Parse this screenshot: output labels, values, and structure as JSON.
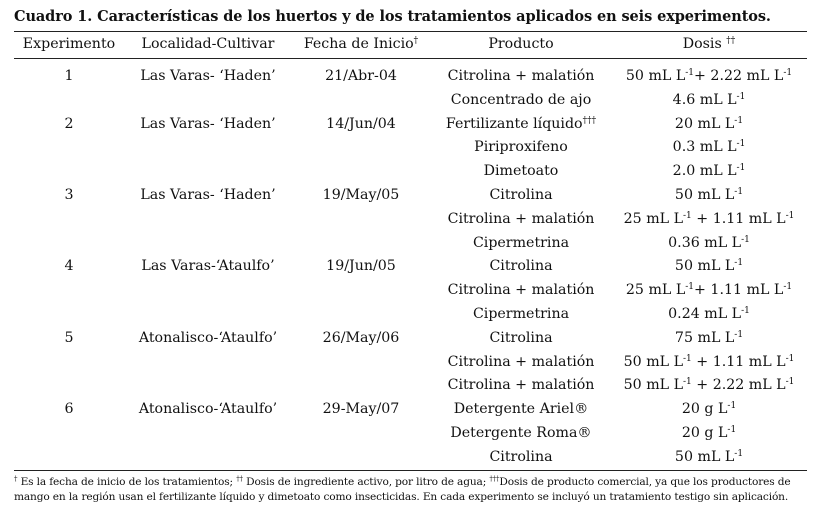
{
  "caption": {
    "label": "Cuadro 1.",
    "text": "Características de los huertos y de los tratamientos aplicados en seis experimentos."
  },
  "headers": {
    "experimento": "Experimento",
    "localidad": "Localidad-Cultivar",
    "fecha": "Fecha de Inicio",
    "fecha_mark": "†",
    "producto": "Producto",
    "dosis": "Dosis",
    "dosis_mark": "††"
  },
  "rows": [
    {
      "exp": "1",
      "loc": "Las Varas- ‘Haden’",
      "fecha": "21/Abr-04",
      "producto": "Citrolina + malatión",
      "producto_mark": "",
      "dosis": [
        [
          "50 mL L",
          "-1"
        ],
        [
          "+ 2.22 mL L",
          "-1"
        ]
      ]
    },
    {
      "exp": "",
      "loc": "",
      "fecha": "",
      "producto": "Concentrado de ajo",
      "producto_mark": "",
      "dosis": [
        [
          "4.6 mL L",
          "-1"
        ],
        [
          "",
          ""
        ]
      ]
    },
    {
      "exp": "2",
      "loc": "Las Varas- ‘Haden’",
      "fecha": "14/Jun/04",
      "producto": "Fertilizante líquido",
      "producto_mark": "†††",
      "dosis": [
        [
          "20 mL L",
          "-1"
        ],
        [
          "",
          ""
        ]
      ]
    },
    {
      "exp": "",
      "loc": "",
      "fecha": "",
      "producto": "Piriproxifeno",
      "producto_mark": "",
      "dosis": [
        [
          "0.3 mL L",
          "-1"
        ],
        [
          "",
          ""
        ]
      ]
    },
    {
      "exp": "",
      "loc": "",
      "fecha": "",
      "producto": "Dimetoato",
      "producto_mark": "",
      "dosis": [
        [
          "2.0 mL L",
          "-1"
        ],
        [
          "",
          ""
        ]
      ]
    },
    {
      "exp": "3",
      "loc": "Las Varas- ‘Haden’",
      "fecha": "19/May/05",
      "producto": "Citrolina",
      "producto_mark": "",
      "dosis": [
        [
          "50 mL L",
          "-1"
        ],
        [
          "",
          ""
        ]
      ]
    },
    {
      "exp": "",
      "loc": "",
      "fecha": "",
      "producto": "Citrolina + malatión",
      "producto_mark": "",
      "dosis": [
        [
          "25 mL L",
          "-1"
        ],
        [
          " + 1.11 mL L",
          "-1"
        ]
      ]
    },
    {
      "exp": "",
      "loc": "",
      "fecha": "",
      "producto": "Cipermetrina",
      "producto_mark": "",
      "dosis": [
        [
          "0.36 mL L",
          "-1"
        ],
        [
          "",
          ""
        ]
      ]
    },
    {
      "exp": "4",
      "loc": "Las Varas-‘Ataulfo’",
      "fecha": "19/Jun/05",
      "producto": "Citrolina",
      "producto_mark": "",
      "dosis": [
        [
          "50 mL L",
          "-1"
        ],
        [
          "",
          ""
        ]
      ]
    },
    {
      "exp": "",
      "loc": "",
      "fecha": "",
      "producto": "Citrolina + malatión",
      "producto_mark": "",
      "dosis": [
        [
          "25 mL L",
          "-1"
        ],
        [
          "+ 1.11 mL L",
          "-1"
        ]
      ]
    },
    {
      "exp": "",
      "loc": "",
      "fecha": "",
      "producto": "Cipermetrina",
      "producto_mark": "",
      "dosis": [
        [
          "0.24 mL L",
          "-1"
        ],
        [
          "",
          ""
        ]
      ]
    },
    {
      "exp": "5",
      "loc": "Atonalisco-‘Ataulfo’",
      "fecha": "26/May/06",
      "producto": "Citrolina",
      "producto_mark": "",
      "dosis": [
        [
          "75 mL L",
          "-1"
        ],
        [
          "",
          ""
        ]
      ]
    },
    {
      "exp": "",
      "loc": "",
      "fecha": "",
      "producto": "Citrolina + malatión",
      "producto_mark": "",
      "dosis": [
        [
          "50 mL L",
          "-1"
        ],
        [
          " + 1.11 mL L",
          "-1"
        ]
      ]
    },
    {
      "exp": "",
      "loc": "",
      "fecha": "",
      "producto": "Citrolina + malatión",
      "producto_mark": "",
      "dosis": [
        [
          "50 mL L",
          "-1"
        ],
        [
          " + 2.22 mL L",
          "-1"
        ]
      ]
    },
    {
      "exp": "6",
      "loc": "Atonalisco-‘Ataulfo’",
      "fecha": "29-May/07",
      "producto": "Detergente Ariel®",
      "producto_mark": "",
      "dosis": [
        [
          "20 g L",
          "-1"
        ],
        [
          "",
          ""
        ]
      ]
    },
    {
      "exp": "",
      "loc": "",
      "fecha": "",
      "producto": "Detergente Roma®",
      "producto_mark": "",
      "dosis": [
        [
          "20 g L",
          "-1"
        ],
        [
          "",
          ""
        ]
      ]
    },
    {
      "exp": "",
      "loc": "",
      "fecha": "",
      "producto": "Citrolina",
      "producto_mark": "",
      "dosis": [
        [
          "50 mL L",
          "-1"
        ],
        [
          "",
          ""
        ]
      ]
    }
  ],
  "footnotes": {
    "mark1": "†",
    "note1": " Es la fecha de inicio de los tratamientos; ",
    "mark2": "††",
    "note2": " Dosis de ingrediente activo, por litro de agua; ",
    "mark3": "†††",
    "note3": "Dosis de producto comercial, ya que los productores de",
    "line2": "mango en la región usan el  fertilizante líquido y dimetoato como insecticidas. En cada experimento se incluyó un tratamiento testigo sin aplicación."
  }
}
